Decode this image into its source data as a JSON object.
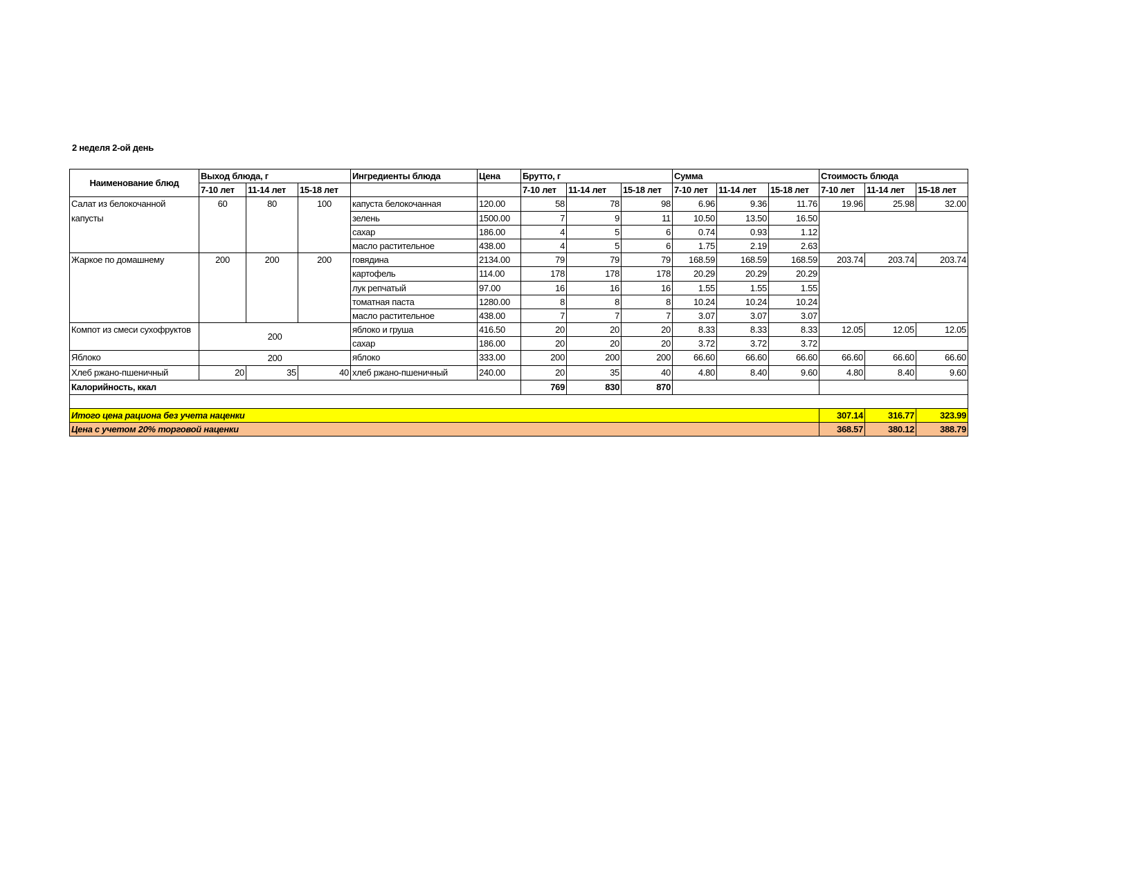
{
  "title": "2 неделя 2-ой день",
  "headers": {
    "dish_name": "Наименование блюд",
    "yield": "Выход блюда, г",
    "ingredients": "Ингредиенты блюда",
    "price": "Цена",
    "gross": "Брутто, г",
    "sum": "Сумма",
    "cost": "Стоимость блюда",
    "age_groups": [
      "7-10 лет",
      "11-14 лет",
      "15-18 лет"
    ]
  },
  "dishes": [
    {
      "name": "Салат из белокочанной капусты",
      "yield": [
        "60",
        "80",
        "100"
      ],
      "yield_merged": false,
      "cost": [
        "19.96",
        "25.98",
        "32.00"
      ],
      "ingredients": [
        {
          "name": "капуста белокочанная",
          "price": "120.00",
          "gross": [
            "58",
            "78",
            "98"
          ],
          "sum": [
            "6.96",
            "9.36",
            "11.76"
          ]
        },
        {
          "name": "зелень",
          "price": "1500.00",
          "gross": [
            "7",
            "9",
            "11"
          ],
          "sum": [
            "10.50",
            "13.50",
            "16.50"
          ]
        },
        {
          "name": "сахар",
          "price": "186.00",
          "gross": [
            "4",
            "5",
            "6"
          ],
          "sum": [
            "0.74",
            "0.93",
            "1.12"
          ]
        },
        {
          "name": "масло растительное",
          "price": "438.00",
          "gross": [
            "4",
            "5",
            "6"
          ],
          "sum": [
            "1.75",
            "2.19",
            "2.63"
          ]
        }
      ]
    },
    {
      "name": "Жаркое по домашнему",
      "yield": [
        "200",
        "200",
        "200"
      ],
      "yield_merged": false,
      "cost": [
        "203.74",
        "203.74",
        "203.74"
      ],
      "ingredients": [
        {
          "name": "говядина",
          "price": "2134.00",
          "gross": [
            "79",
            "79",
            "79"
          ],
          "sum": [
            "168.59",
            "168.59",
            "168.59"
          ]
        },
        {
          "name": "картофель",
          "price": "114.00",
          "gross": [
            "178",
            "178",
            "178"
          ],
          "sum": [
            "20.29",
            "20.29",
            "20.29"
          ]
        },
        {
          "name": "лук репчатый",
          "price": "97.00",
          "gross": [
            "16",
            "16",
            "16"
          ],
          "sum": [
            "1.55",
            "1.55",
            "1.55"
          ]
        },
        {
          "name": "томатная паста",
          "price": "1280.00",
          "gross": [
            "8",
            "8",
            "8"
          ],
          "sum": [
            "10.24",
            "10.24",
            "10.24"
          ]
        },
        {
          "name": "масло растительное",
          "price": "438.00",
          "gross": [
            "7",
            "7",
            "7"
          ],
          "sum": [
            "3.07",
            "3.07",
            "3.07"
          ]
        }
      ]
    },
    {
      "name": "Компот из смеси сухофруктов",
      "yield": [
        "200"
      ],
      "yield_merged": true,
      "cost": [
        "12.05",
        "12.05",
        "12.05"
      ],
      "ingredients": [
        {
          "name": "яблоко и груша",
          "price": "416.50",
          "gross": [
            "20",
            "20",
            "20"
          ],
          "sum": [
            "8.33",
            "8.33",
            "8.33"
          ]
        },
        {
          "name": "сахар",
          "price": "186.00",
          "gross": [
            "20",
            "20",
            "20"
          ],
          "sum": [
            "3.72",
            "3.72",
            "3.72"
          ]
        }
      ]
    },
    {
      "name": "Яблоко",
      "yield": [
        "200"
      ],
      "yield_merged": true,
      "cost": [
        "66.60",
        "66.60",
        "66.60"
      ],
      "ingredients": [
        {
          "name": "яблоко",
          "price": "333.00",
          "gross": [
            "200",
            "200",
            "200"
          ],
          "sum": [
            "66.60",
            "66.60",
            "66.60"
          ]
        }
      ]
    },
    {
      "name": "Хлеб ржано-пшеничный",
      "yield": [
        "20",
        "35",
        "40"
      ],
      "yield_merged": false,
      "yield_align": "right",
      "cost": [
        "4.80",
        "8.40",
        "9.60"
      ],
      "ingredients": [
        {
          "name": "хлеб ржано-пшеничный",
          "price": "240.00",
          "gross": [
            "20",
            "35",
            "40"
          ],
          "sum": [
            "4.80",
            "8.40",
            "9.60"
          ]
        }
      ]
    }
  ],
  "calories": {
    "label": "Калорийность, ккал",
    "values": [
      "769",
      "830",
      "870"
    ]
  },
  "total_no_markup": {
    "label": "Итого цена рациона без учета наценки",
    "values": [
      "307.14",
      "316.77",
      "323.99"
    ],
    "color": "#ffff00"
  },
  "total_with_markup": {
    "label": "Цена с учетом 20% торговой наценки",
    "values": [
      "368.57",
      "380.12",
      "388.79"
    ],
    "color": "#f9bf8f"
  }
}
